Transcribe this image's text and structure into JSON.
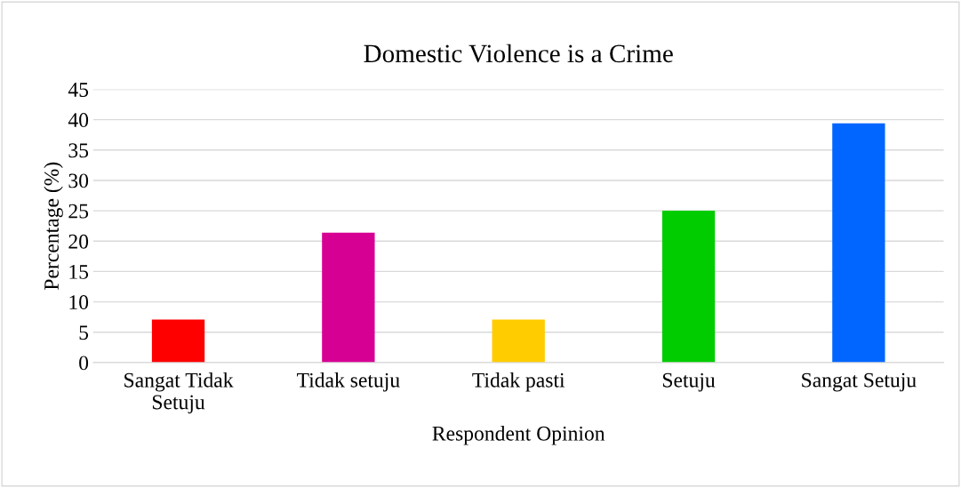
{
  "chart_data": {
    "type": "bar",
    "title": "Domestic Violence is a Crime",
    "xlabel": "Respondent Opinion",
    "ylabel": "Percentage (%)",
    "categories": [
      "Sangat Tidak\nSetuju",
      "Tidak setuju",
      "Tidak pasti",
      "Setuju",
      "Sangat Setuju"
    ],
    "values": [
      7.1,
      21.4,
      7.1,
      25.0,
      39.4
    ],
    "colors": [
      "#ff0000",
      "#d60093",
      "#ffcc00",
      "#00cc00",
      "#0066ff"
    ],
    "ylim": [
      0,
      45
    ],
    "yticks": [
      0,
      5,
      10,
      15,
      20,
      25,
      30,
      35,
      40,
      45
    ],
    "grid": "y"
  }
}
